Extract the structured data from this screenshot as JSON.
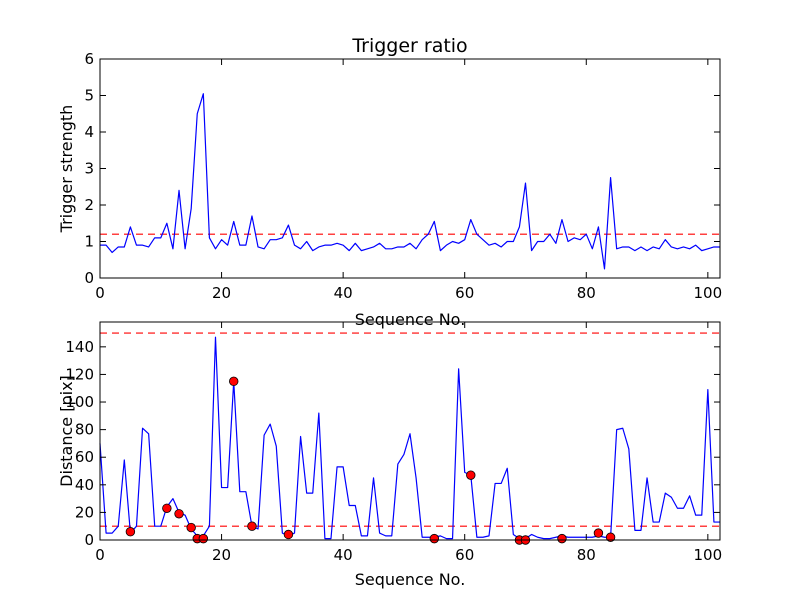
{
  "chart_data": [
    {
      "type": "line",
      "title": "Trigger ratio",
      "xlabel": "Sequence No.",
      "ylabel": "Trigger strength",
      "xlim": [
        0,
        102
      ],
      "ylim": [
        0,
        6
      ],
      "xticks": [
        0,
        20,
        40,
        60,
        80,
        100
      ],
      "yticks": [
        0,
        1,
        2,
        3,
        4,
        5,
        6
      ],
      "grid": false,
      "line_color": "#0000ff",
      "threshold_color": "#ff0000",
      "threshold": [
        1.2
      ],
      "series": [
        {
          "x": [
            0,
            1,
            2,
            3,
            4,
            5,
            6,
            7,
            8,
            9,
            10,
            11,
            12,
            13,
            14,
            15,
            16,
            17,
            18,
            19,
            20,
            21,
            22,
            23,
            24,
            25,
            26,
            27,
            28,
            29,
            30,
            31,
            32,
            33,
            34,
            35,
            36,
            37,
            38,
            39,
            40,
            41,
            42,
            43,
            44,
            45,
            46,
            47,
            48,
            49,
            50,
            51,
            52,
            53,
            54,
            55,
            56,
            57,
            58,
            59,
            60,
            61,
            62,
            63,
            64,
            65,
            66,
            67,
            68,
            69,
            70,
            71,
            72,
            73,
            74,
            75,
            76,
            77,
            78,
            79,
            80,
            81,
            82,
            83,
            84,
            85,
            86,
            87,
            88,
            89,
            90,
            91,
            92,
            93,
            94,
            95,
            96,
            97,
            98,
            99,
            100,
            101,
            102
          ],
          "values": [
            0.9,
            0.9,
            0.7,
            0.85,
            0.85,
            1.4,
            0.9,
            0.9,
            0.85,
            1.1,
            1.1,
            1.5,
            0.8,
            2.4,
            0.8,
            1.9,
            4.5,
            5.05,
            1.1,
            0.8,
            1.05,
            0.9,
            1.55,
            0.9,
            0.9,
            1.7,
            0.85,
            0.8,
            1.05,
            1.05,
            1.1,
            1.45,
            0.9,
            0.8,
            1.0,
            0.75,
            0.85,
            0.9,
            0.9,
            0.95,
            0.9,
            0.75,
            0.95,
            0.75,
            0.8,
            0.85,
            0.95,
            0.8,
            0.8,
            0.85,
            0.85,
            0.95,
            0.8,
            1.05,
            1.2,
            1.55,
            0.75,
            0.9,
            1.0,
            0.95,
            1.05,
            1.6,
            1.2,
            1.05,
            0.9,
            0.95,
            0.85,
            1.0,
            1.0,
            1.4,
            2.6,
            0.75,
            1.0,
            1.0,
            1.2,
            0.95,
            1.6,
            1.0,
            1.1,
            1.05,
            1.2,
            0.8,
            1.4,
            0.25,
            2.75,
            0.8,
            0.85,
            0.85,
            0.75,
            0.85,
            0.75,
            0.85,
            0.8,
            1.05,
            0.85,
            0.8,
            0.85,
            0.8,
            0.9,
            0.75,
            0.8,
            0.85,
            0.85
          ]
        }
      ]
    },
    {
      "type": "line",
      "title": "",
      "xlabel": "Sequence No.",
      "ylabel": "Distance [pix]",
      "xlim": [
        0,
        102
      ],
      "ylim": [
        0,
        158
      ],
      "xticks": [
        0,
        20,
        40,
        60,
        80,
        100
      ],
      "yticks": [
        0,
        20,
        40,
        60,
        80,
        100,
        120,
        140
      ],
      "grid": false,
      "line_color": "#0000ff",
      "threshold_color": "#ff0000",
      "marker_color": "#ff0000",
      "threshold": [
        10,
        150
      ],
      "series": [
        {
          "x": [
            0,
            1,
            2,
            3,
            4,
            5,
            6,
            7,
            8,
            9,
            10,
            11,
            12,
            13,
            14,
            15,
            16,
            17,
            18,
            19,
            20,
            21,
            22,
            23,
            24,
            25,
            26,
            27,
            28,
            29,
            30,
            31,
            32,
            33,
            34,
            35,
            36,
            37,
            38,
            39,
            40,
            41,
            42,
            43,
            44,
            45,
            46,
            47,
            48,
            49,
            50,
            51,
            52,
            53,
            54,
            55,
            56,
            57,
            58,
            59,
            60,
            61,
            62,
            63,
            64,
            65,
            66,
            67,
            68,
            69,
            70,
            71,
            72,
            73,
            74,
            75,
            76,
            77,
            78,
            79,
            80,
            81,
            82,
            83,
            84,
            85,
            86,
            87,
            88,
            89,
            90,
            91,
            92,
            93,
            94,
            95,
            96,
            97,
            98,
            99,
            100,
            101,
            102
          ],
          "values": [
            70,
            5,
            5,
            10,
            58,
            5,
            10,
            81,
            77,
            10,
            10,
            24,
            30,
            20,
            18,
            8,
            3,
            3,
            10,
            147,
            38,
            38,
            115,
            35,
            35,
            10,
            8,
            76,
            84,
            68,
            5,
            3,
            5,
            75,
            34,
            34,
            92,
            1,
            1,
            53,
            53,
            25,
            25,
            3,
            3,
            45,
            5,
            3,
            3,
            55,
            62,
            77,
            45,
            2,
            2,
            2,
            3,
            1,
            1,
            124,
            49,
            47,
            2,
            2,
            3,
            41,
            41,
            52,
            4,
            1,
            1,
            4,
            2,
            1,
            1,
            2,
            3,
            2,
            2,
            2,
            2,
            2,
            3,
            2,
            2,
            80,
            81,
            66,
            7,
            7,
            45,
            13,
            13,
            34,
            31,
            23,
            23,
            32,
            18,
            18,
            109,
            13,
            13
          ]
        },
        {
          "marker": "circle",
          "x": [
            5,
            11,
            13,
            15,
            16,
            17,
            22,
            25,
            31,
            55,
            61,
            69,
            70,
            76,
            82,
            84
          ],
          "values": [
            6,
            23,
            19,
            9,
            1,
            1,
            115,
            10,
            4,
            1,
            47,
            0,
            0,
            1,
            5,
            2
          ]
        }
      ]
    }
  ]
}
